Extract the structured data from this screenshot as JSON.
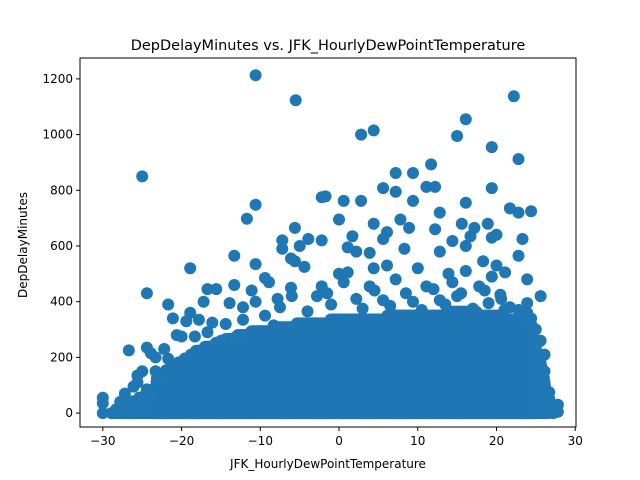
{
  "chart_data": {
    "type": "scatter",
    "title": "DepDelayMinutes vs. JFK_HourlyDewPointTemperature",
    "xlabel": "JFK_HourlyDewPointTemperature",
    "ylabel": "DepDelayMinutes",
    "xlim": [
      -32.9,
      30.1
    ],
    "ylim": [
      -50,
      1275
    ],
    "xticks": [
      -30,
      -20,
      -10,
      0,
      10,
      20,
      30
    ],
    "yticks": [
      0,
      200,
      400,
      600,
      800,
      1000,
      1200
    ],
    "grid": false,
    "legend": "none",
    "marker_color": "#1f77b4",
    "series": [
      {
        "points": [
          [
            -10.6,
            1213
          ],
          [
            -5.5,
            1123
          ],
          [
            22.2,
            1138
          ],
          [
            16.1,
            1055
          ],
          [
            4.4,
            1015
          ],
          [
            2.8,
            1000
          ],
          [
            15.0,
            995
          ],
          [
            19.4,
            955
          ],
          [
            22.8,
            912
          ],
          [
            11.7,
            893
          ],
          [
            -25.0,
            850
          ],
          [
            7.2,
            862
          ],
          [
            9.4,
            862
          ],
          [
            11.1,
            812
          ],
          [
            12.2,
            812
          ],
          [
            5.6,
            808
          ],
          [
            19.4,
            808
          ],
          [
            7.2,
            795
          ],
          [
            -2.2,
            775
          ],
          [
            -1.7,
            778
          ],
          [
            0.6,
            762
          ],
          [
            2.8,
            762
          ],
          [
            9.4,
            762
          ],
          [
            16.1,
            755
          ],
          [
            -10.6,
            748
          ],
          [
            22.8,
            720
          ],
          [
            24.4,
            725
          ],
          [
            21.7,
            735
          ],
          [
            12.8,
            720
          ],
          [
            -11.7,
            698
          ],
          [
            0.0,
            695
          ],
          [
            7.8,
            695
          ],
          [
            15.6,
            680
          ],
          [
            17.2,
            665
          ],
          [
            18.9,
            680
          ],
          [
            -5.6,
            665
          ],
          [
            4.4,
            680
          ],
          [
            8.9,
            665
          ],
          [
            12.2,
            660
          ],
          [
            6.1,
            650
          ],
          [
            -2.2,
            620
          ],
          [
            1.7,
            635
          ],
          [
            16.7,
            635
          ],
          [
            20.0,
            640
          ],
          [
            -7.2,
            620
          ],
          [
            -3.9,
            625
          ],
          [
            5.6,
            625
          ],
          [
            14.4,
            618
          ],
          [
            19.4,
            630
          ],
          [
            23.3,
            625
          ],
          [
            -13.3,
            565
          ],
          [
            -6.1,
            555
          ],
          [
            -5.6,
            545
          ],
          [
            2.2,
            580
          ],
          [
            -7.2,
            590
          ],
          [
            -5.0,
            600
          ],
          [
            1.1,
            595
          ],
          [
            3.9,
            575
          ],
          [
            8.3,
            590
          ],
          [
            12.8,
            580
          ],
          [
            16.1,
            600
          ],
          [
            22.8,
            565
          ],
          [
            18.3,
            545
          ],
          [
            20.0,
            530
          ],
          [
            -18.9,
            520
          ],
          [
            -9.4,
            485
          ],
          [
            -8.9,
            470
          ],
          [
            -10.6,
            535
          ],
          [
            -4.4,
            525
          ],
          [
            0.0,
            500
          ],
          [
            1.1,
            505
          ],
          [
            4.4,
            520
          ],
          [
            6.1,
            530
          ],
          [
            10.0,
            520
          ],
          [
            13.9,
            500
          ],
          [
            16.1,
            510
          ],
          [
            19.4,
            490
          ],
          [
            21.1,
            505
          ],
          [
            23.9,
            480
          ],
          [
            -24.4,
            430
          ],
          [
            -16.7,
            445
          ],
          [
            -15.6,
            445
          ],
          [
            -13.3,
            460
          ],
          [
            -11.1,
            440
          ],
          [
            -6.1,
            450
          ],
          [
            -2.2,
            455
          ],
          [
            0.6,
            470
          ],
          [
            3.9,
            455
          ],
          [
            7.2,
            480
          ],
          [
            11.1,
            455
          ],
          [
            14.4,
            470
          ],
          [
            17.8,
            455
          ],
          [
            -21.7,
            390
          ],
          [
            -18.9,
            360
          ],
          [
            -17.2,
            400
          ],
          [
            -13.9,
            395
          ],
          [
            -12.2,
            380
          ],
          [
            -10.6,
            400
          ],
          [
            -7.8,
            410
          ],
          [
            -2.8,
            420
          ],
          [
            2.2,
            410
          ],
          [
            5.6,
            405
          ],
          [
            9.4,
            400
          ],
          [
            12.8,
            405
          ],
          [
            15.0,
            420
          ],
          [
            20.6,
            410
          ],
          [
            23.9,
            395
          ],
          [
            25.6,
            420
          ],
          [
            -21.1,
            340
          ],
          [
            -19.4,
            330
          ],
          [
            -17.8,
            335
          ],
          [
            -16.1,
            325
          ],
          [
            -14.4,
            320
          ],
          [
            -12.2,
            335
          ],
          [
            -9.4,
            350
          ],
          [
            -8.3,
            315
          ],
          [
            -20.6,
            280
          ],
          [
            -20.0,
            275
          ],
          [
            -18.3,
            275
          ],
          [
            -16.7,
            290
          ],
          [
            -15.0,
            260
          ],
          [
            -13.3,
            270
          ],
          [
            -11.7,
            275
          ],
          [
            -22.2,
            230
          ],
          [
            -21.7,
            195
          ],
          [
            -24.4,
            235
          ],
          [
            -23.9,
            215
          ],
          [
            -26.7,
            225
          ],
          [
            -23.3,
            200
          ],
          [
            -25.0,
            150
          ],
          [
            -25.6,
            135
          ],
          [
            -26.1,
            95
          ],
          [
            -27.2,
            70
          ],
          [
            -27.8,
            40
          ],
          [
            -28.3,
            10
          ],
          [
            -25.6,
            110
          ],
          [
            -24.4,
            85
          ],
          [
            -24.0,
            60
          ],
          [
            -23.3,
            150
          ],
          [
            -22.8,
            120
          ],
          [
            -30.0,
            55
          ],
          [
            -30.0,
            35
          ],
          [
            -30.0,
            0
          ],
          [
            -28.9,
            0
          ],
          [
            -28.3,
            5
          ],
          [
            -27.8,
            0
          ],
          [
            -27.2,
            10
          ],
          [
            -26.7,
            25
          ],
          [
            -26.1,
            0
          ],
          [
            -25.6,
            20
          ],
          [
            -25.0,
            45
          ],
          [
            -24.4,
            15
          ],
          [
            24.4,
            320
          ],
          [
            25.0,
            300
          ],
          [
            25.6,
            260
          ],
          [
            26.1,
            210
          ],
          [
            26.1,
            150
          ],
          [
            24.4,
            280
          ],
          [
            25.6,
            180
          ],
          [
            25.0,
            235
          ],
          [
            26.7,
            75
          ],
          [
            26.7,
            50
          ],
          [
            26.1,
            100
          ],
          [
            27.8,
            30
          ],
          [
            27.8,
            5
          ],
          [
            27.2,
            0
          ],
          [
            26.7,
            10
          ],
          [
            25.6,
            35
          ],
          [
            25.0,
            130
          ],
          [
            26.1,
            20
          ],
          [
            24.4,
            340
          ],
          [
            23.9,
            360
          ],
          [
            22.8,
            370
          ],
          [
            21.7,
            380
          ],
          [
            23.3,
            345
          ],
          [
            -7.5,
            380
          ],
          [
            -4.0,
            365
          ],
          [
            -1.0,
            390
          ],
          [
            3.0,
            375
          ],
          [
            6.5,
            385
          ],
          [
            10.5,
            370
          ],
          [
            13.5,
            390
          ],
          [
            17.0,
            375
          ],
          [
            19.0,
            395
          ],
          [
            21.0,
            370
          ],
          [
            -6.0,
            420
          ],
          [
            -1.5,
            430
          ],
          [
            4.5,
            440
          ],
          [
            8.5,
            430
          ],
          [
            12.0,
            445
          ],
          [
            15.5,
            430
          ],
          [
            18.5,
            440
          ],
          [
            20.5,
            425
          ]
        ]
      }
    ],
    "dense_regions": [
      {
        "x_range": [
          -28.5,
          26.7
        ],
        "y_min": 0,
        "y_max_at": [
          [
            -28.5,
            10
          ],
          [
            -25,
            60
          ],
          [
            -22,
            120
          ],
          [
            -18,
            190
          ],
          [
            -14,
            230
          ],
          [
            -10,
            255
          ],
          [
            -6,
            275
          ],
          [
            -2,
            295
          ],
          [
            2,
            310
          ],
          [
            6,
            310
          ],
          [
            10,
            320
          ],
          [
            14,
            330
          ],
          [
            18,
            330
          ],
          [
            22,
            320
          ],
          [
            24,
            290
          ],
          [
            25.5,
            200
          ],
          [
            26.7,
            40
          ]
        ]
      },
      {
        "x_range": [
          -23,
          25
        ],
        "y_min": 0,
        "y_max_at": [
          [
            -23,
            130
          ],
          [
            -18,
            230
          ],
          [
            -12,
            290
          ],
          [
            -6,
            320
          ],
          [
            0,
            340
          ],
          [
            6,
            350
          ],
          [
            12,
            360
          ],
          [
            16,
            370
          ],
          [
            20,
            355
          ],
          [
            23,
            330
          ],
          [
            25,
            260
          ]
        ]
      }
    ]
  }
}
